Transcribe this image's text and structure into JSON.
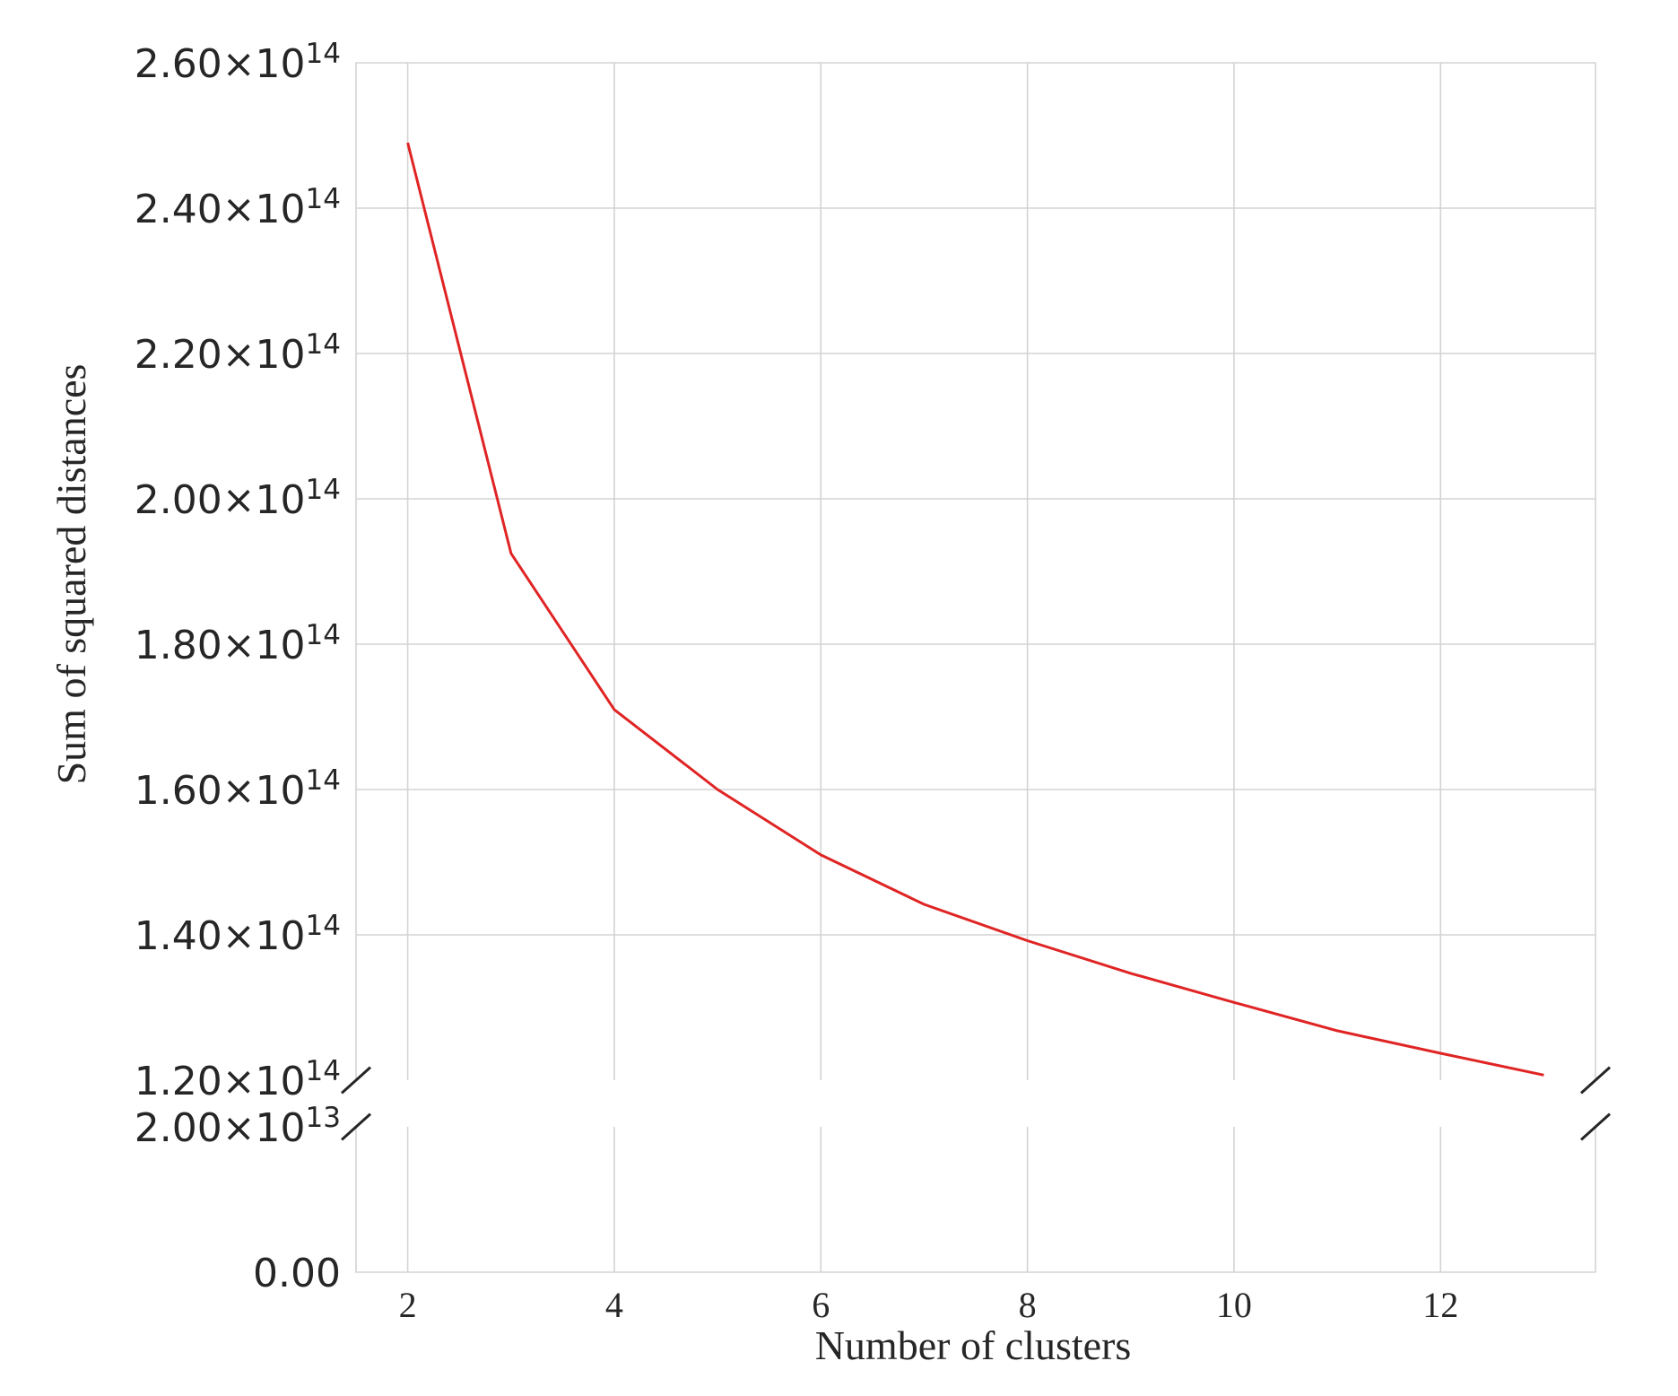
{
  "chart_data": {
    "type": "line",
    "title": "",
    "xlabel": "Number of clusters",
    "ylabel": "Sum of squared distances",
    "x": [
      2,
      3,
      4,
      5,
      6,
      7,
      8,
      9,
      10,
      11,
      12,
      13
    ],
    "series": [
      {
        "values": [
          249000000000000.0,
          192500000000000.0,
          171000000000000.0,
          160000000000000.0,
          151000000000000.0,
          144200000000000.0,
          139200000000000.0,
          134700000000000.0,
          130700000000000.0,
          126800000000000.0,
          123700000000000.0,
          120700000000000.0
        ]
      }
    ],
    "xlim": [
      1.5,
      13.5
    ],
    "ylim_upper": [
      120000000000000.0,
      260000000000000.0
    ],
    "ylim_lower": [
      0,
      20000000000000.0
    ],
    "broken_y_axis": true,
    "grid": true,
    "x_ticks": [
      "2",
      "4",
      "6",
      "8",
      "10",
      "12"
    ],
    "y_ticks_upper": [
      {
        "mantissa": "1.20×10",
        "exponent": "14"
      },
      {
        "mantissa": "1.40×10",
        "exponent": "14"
      },
      {
        "mantissa": "1.60×10",
        "exponent": "14"
      },
      {
        "mantissa": "1.80×10",
        "exponent": "14"
      },
      {
        "mantissa": "2.00×10",
        "exponent": "14"
      },
      {
        "mantissa": "2.20×10",
        "exponent": "14"
      },
      {
        "mantissa": "2.40×10",
        "exponent": "14"
      },
      {
        "mantissa": "2.60×10",
        "exponent": "14"
      }
    ],
    "y_ticks_lower": [
      {
        "mantissa": "0.00",
        "exponent": ""
      },
      {
        "mantissa": "2.00×10",
        "exponent": "13"
      }
    ],
    "colors": {
      "line": "#e02424",
      "grid": "#d3d3d3",
      "text": "#262626"
    }
  }
}
